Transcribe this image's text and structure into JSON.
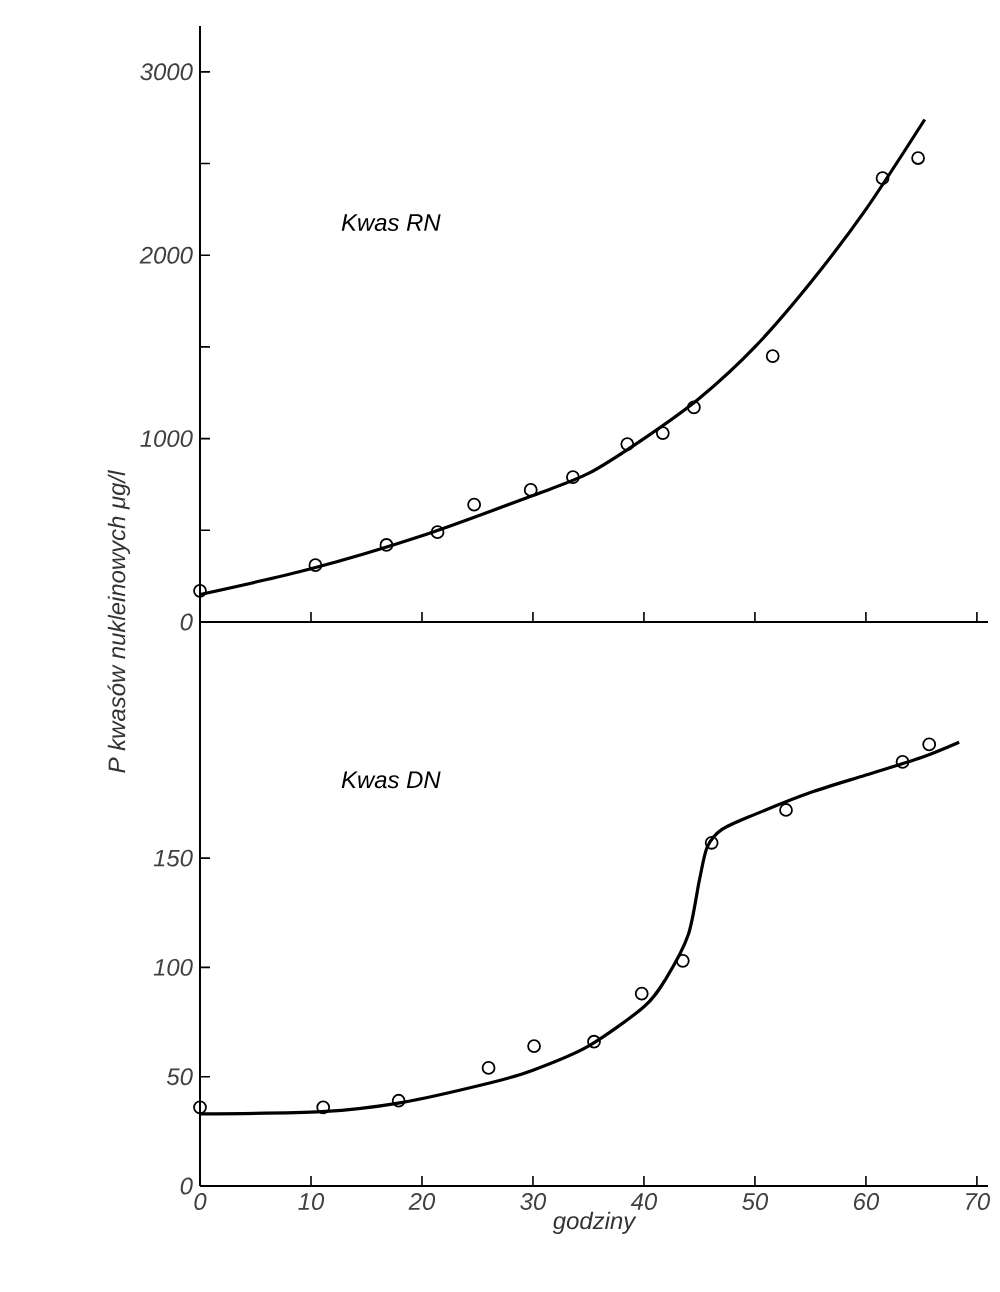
{
  "chart_data": [
    {
      "type": "scatter",
      "ylabel": "P kwasów nukleinowych     μg/l",
      "annotations": [
        "Kwas RN"
      ],
      "tick_labels": "y",
      "xlim": [
        0,
        71
      ],
      "ylim": [
        0,
        3250
      ],
      "xticks": [
        {
          "value": 0,
          "label": null
        },
        {
          "value": 10,
          "label": null
        },
        {
          "value": 20,
          "label": null
        },
        {
          "value": 30,
          "label": null
        },
        {
          "value": 40,
          "label": null
        },
        {
          "value": 50,
          "label": null
        },
        {
          "value": 60,
          "label": null
        },
        {
          "value": 70,
          "label": null
        }
      ],
      "yticks": [
        0,
        {
          "value": 500,
          "label": null
        },
        1000,
        {
          "value": 1500,
          "label": null
        },
        2000,
        {
          "value": 2500,
          "label": null
        },
        3000
      ],
      "series": [
        {
          "color": "#000000",
          "marker": "circle",
          "x": [
            0,
            10.4,
            16.8,
            21.4,
            24.7,
            29.8,
            33.6,
            38.5,
            41.7,
            44.5,
            51.6,
            61.5,
            64.7
          ],
          "values": [
            170,
            310,
            420,
            490,
            640,
            720,
            790,
            970,
            1030,
            1170,
            1450,
            2420,
            2530
          ]
        },
        {
          "type": "line",
          "marker": "none",
          "color": "#000000",
          "x": [
            0,
            10,
            20,
            30,
            35,
            40,
            45,
            50,
            55,
            60,
            65.3
          ],
          "values": [
            150,
            290,
            470,
            690,
            810,
            1000,
            1220,
            1500,
            1850,
            2250,
            2740
          ]
        }
      ]
    },
    {
      "type": "scatter",
      "xlabel": "godziny",
      "annotations": [
        "Kwas DN"
      ],
      "xlim": [
        0,
        71
      ],
      "ylim": [
        0,
        258
      ],
      "xticks": [
        0,
        10,
        20,
        30,
        40,
        50,
        60,
        70
      ],
      "yticks": [
        0,
        50,
        100,
        150
      ],
      "series": [
        {
          "color": "#000000",
          "marker": "circle",
          "x": [
            0,
            11.1,
            17.9,
            26,
            30.1,
            35.5,
            39.8,
            43.5,
            46.1,
            52.8,
            63.3,
            65.7
          ],
          "values": [
            36,
            36,
            39,
            54,
            64,
            66,
            88,
            103,
            157,
            172,
            194,
            202
          ]
        },
        {
          "type": "line",
          "marker": "none",
          "color": "#000000",
          "x": [
            0,
            11,
            18,
            26,
            30,
            35,
            40,
            42,
            44,
            45,
            45.7,
            47,
            50,
            55,
            60,
            65,
            68.4
          ],
          "values": [
            33,
            34,
            38,
            47,
            53,
            64,
            82,
            95,
            115,
            140,
            155,
            163,
            170,
            180,
            188,
            196,
            203
          ]
        }
      ]
    }
  ]
}
